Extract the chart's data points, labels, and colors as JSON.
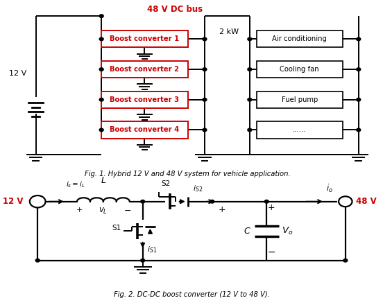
{
  "fig1_title": "48 V DC bus",
  "fig1_caption": "Fig. 1. Hybrid 12 V and 48 V system for vehicle application.",
  "fig2_caption": "Fig. 2. DC-DC boost converter (12 V to 48 V).",
  "boost_converters": [
    "Boost converter 1",
    "Boost converter 2",
    "Boost converter 3",
    "Boost converter 4"
  ],
  "loads": [
    "Air conditioning",
    "Cooling fan",
    "Fuel pump",
    "......"
  ],
  "v12": "12 V",
  "v48": "48 V",
  "power": "2 kW",
  "red_color": "#cc0000",
  "black_color": "#000000",
  "bg_color": "#ffffff"
}
